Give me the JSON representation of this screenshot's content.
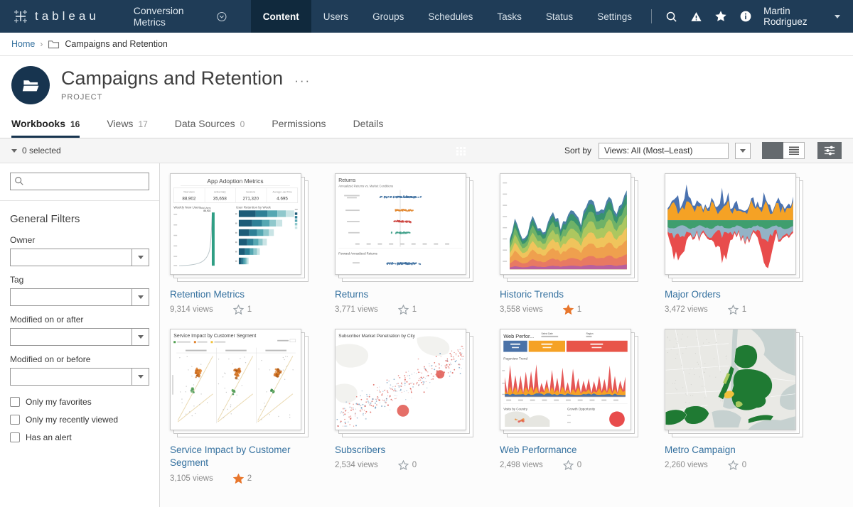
{
  "colors": {
    "nav_bg": "#1f3c57",
    "nav_active_bg": "#10293d",
    "accent_navy": "#17344f",
    "link_blue": "#35719f",
    "star_orange": "#e8772d"
  },
  "nav": {
    "logo": "tableau",
    "site": "Conversion Metrics",
    "tabs": [
      {
        "label": "Content",
        "active": true
      },
      {
        "label": "Users"
      },
      {
        "label": "Groups"
      },
      {
        "label": "Schedules"
      },
      {
        "label": "Tasks"
      },
      {
        "label": "Status"
      },
      {
        "label": "Settings"
      }
    ],
    "user": "Martin Rodriguez"
  },
  "breadcrumb": {
    "home": "Home",
    "sep": "›",
    "current": "Campaigns and Retention"
  },
  "header": {
    "title": "Campaigns and Retention",
    "more": "···",
    "type_label": "PROJECT"
  },
  "page_tabs": [
    {
      "label": "Workbooks",
      "count": "16",
      "active": true
    },
    {
      "label": "Views",
      "count": "17"
    },
    {
      "label": "Data Sources",
      "count": "0"
    },
    {
      "label": "Permissions",
      "count": ""
    },
    {
      "label": "Details",
      "count": ""
    }
  ],
  "toolbar": {
    "selected_label": "0 selected",
    "sort_label": "Sort by",
    "sort_value": "Views: All (Most–Least)"
  },
  "sidebar": {
    "search_placeholder": "",
    "heading": "General Filters",
    "fields": [
      {
        "label": "Owner"
      },
      {
        "label": "Tag"
      },
      {
        "label": "Modified on or after"
      },
      {
        "label": "Modified on or before"
      }
    ],
    "checkboxes": [
      {
        "label": "Only my favorites"
      },
      {
        "label": "Only my recently viewed"
      },
      {
        "label": "Has an alert"
      }
    ]
  },
  "workbooks": [
    {
      "title": "Retention Metrics",
      "views": "9,314 views",
      "favorites": "1",
      "starred": false
    },
    {
      "title": "Returns",
      "views": "3,771 views",
      "favorites": "1",
      "starred": false
    },
    {
      "title": "Historic Trends",
      "views": "3,558 views",
      "favorites": "1",
      "starred": true
    },
    {
      "title": "Major Orders",
      "views": "3,472 views",
      "favorites": "1",
      "starred": false
    },
    {
      "title": "Service Impact by Customer Segment",
      "views": "3,105 views",
      "favorites": "2",
      "starred": true
    },
    {
      "title": "Subscribers",
      "views": "2,534 views",
      "favorites": "0",
      "starred": false
    },
    {
      "title": "Web Performance",
      "views": "2,498 views",
      "favorites": "0",
      "starred": false
    },
    {
      "title": "Metro Campaign",
      "views": "2,260 views",
      "favorites": "0",
      "starred": false
    }
  ],
  "thumbs": {
    "t1": {
      "title": "App Adoption Metrics",
      "kpis": [
        {
          "label": "Total Users",
          "value": "88,902"
        },
        {
          "label": "Active Daily",
          "value": "35,658"
        },
        {
          "label": "Sessions",
          "value": "271,320"
        },
        {
          "label": "Average Load Time",
          "value": "4.695"
        }
      ],
      "left_title": "Weekly New Users",
      "right_title": "User Retention by Week",
      "annotation_label": "Total Users",
      "annotation_value": "88,902"
    },
    "t2": {
      "title": "Returns",
      "subtitle": "Annualized Returns vs. Market Conditions",
      "section2": "Forward Annualized Returns"
    },
    "t5": {
      "title": "Service Impact by Customer Segment"
    },
    "t6": {
      "title": "Subscriber Market Penetration by City"
    },
    "t7": {
      "title": "Web Perfor...",
      "date_label": "Select Date",
      "region_label": "Region",
      "trend_label": "Pageview Trend",
      "visits_label": "Visits by Country",
      "growth_label": "Growth Opportunity"
    }
  }
}
